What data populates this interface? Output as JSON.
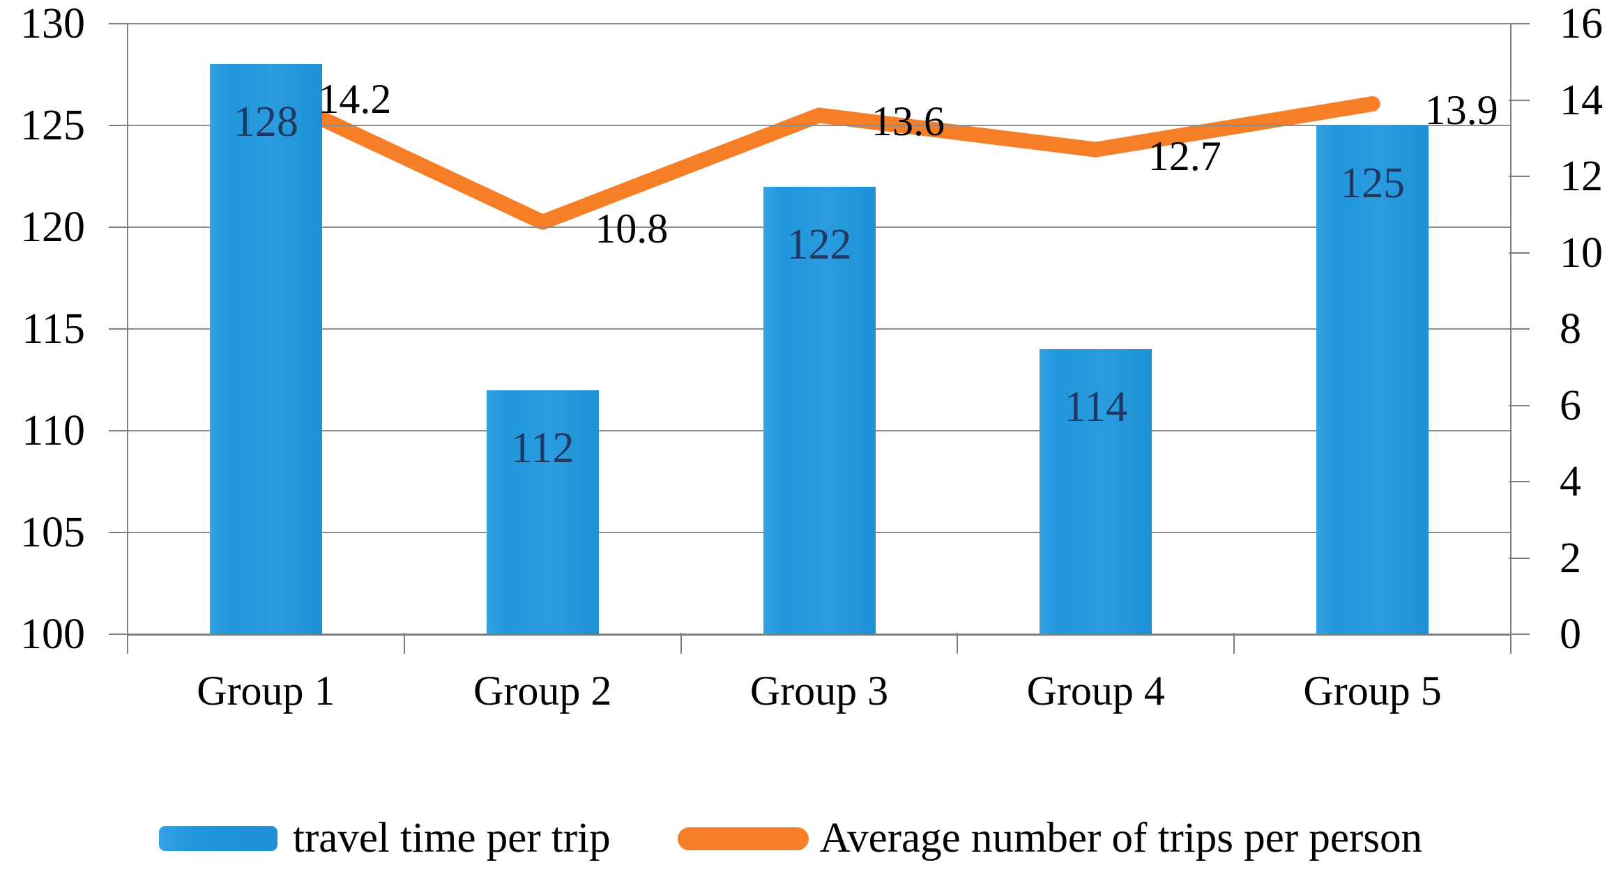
{
  "chart_data": {
    "type": "bar",
    "subtype": "combo-bar-line-dual-axis",
    "title": "",
    "categories": [
      "Group 1",
      "Group 2",
      "Group 3",
      "Group 4",
      "Group 5"
    ],
    "series": [
      {
        "name": "travel time per trip",
        "type": "bar",
        "axis": "left",
        "values": [
          128,
          112,
          122,
          114,
          125
        ],
        "labels": [
          "128",
          "112",
          "122",
          "114",
          "125"
        ],
        "color": "#2196DB",
        "label_color": "#1F3864"
      },
      {
        "name": "Average number of trips per person",
        "type": "line",
        "axis": "right",
        "values": [
          14.2,
          10.8,
          13.6,
          12.7,
          13.9
        ],
        "labels": [
          "14.2",
          "10.8",
          "13.6",
          "12.7",
          "13.9"
        ],
        "color": "#F57E27",
        "label_color": "#000000"
      }
    ],
    "axes": {
      "left": {
        "min": 100,
        "max": 130,
        "step": 5,
        "ticks": [
          "100",
          "105",
          "110",
          "115",
          "120",
          "125",
          "130"
        ]
      },
      "right": {
        "min": 0,
        "max": 16,
        "step": 2,
        "ticks": [
          "0",
          "2",
          "4",
          "6",
          "8",
          "10",
          "12",
          "14",
          "16"
        ]
      }
    },
    "grid": "horizontal-only",
    "legend_position": "bottom",
    "colors": {
      "gridline": "#8C8C8C",
      "axis": "#7F7F7F",
      "tick_text": "#000000",
      "bar": "#2196DB",
      "line": "#F57E27",
      "bar_value_text": "#1F3864"
    }
  }
}
